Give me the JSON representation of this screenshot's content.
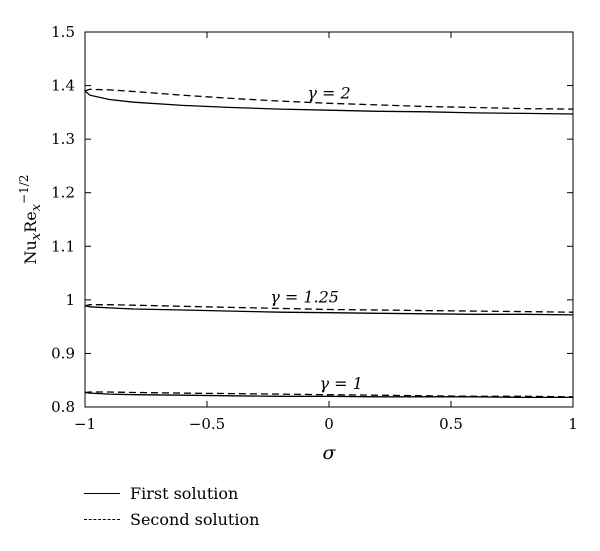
{
  "chart_data": {
    "type": "line",
    "xlabel": "σ",
    "ylabel": "Nu",
    "ylabel_sub1": "x",
    "ylabel_mid": "Re",
    "ylabel_sub2": "x",
    "ylabel_sup": "−1/2",
    "xlim": [
      -1,
      1
    ],
    "ylim": [
      0.8,
      1.5
    ],
    "xticks": [
      -1,
      -0.5,
      0,
      0.5,
      1
    ],
    "xtick_labels": [
      "−1",
      "−0.5",
      "0",
      "0.5",
      "1"
    ],
    "yticks": [
      0.8,
      0.9,
      1.0,
      1.1,
      1.2,
      1.3,
      1.4,
      1.5
    ],
    "ytick_labels": [
      "0.8",
      "0.9",
      "1",
      "1.1",
      "1.2",
      "1.3",
      "1.4",
      "1.5"
    ],
    "grid": false,
    "legend_position": "bottom-left, below plot",
    "legend": [
      {
        "label": "First solution",
        "style": "solid"
      },
      {
        "label": "Second solution",
        "style": "dashed"
      }
    ],
    "annotations": [
      {
        "text": "γ = 2",
        "x": 0.0,
        "y": 1.376
      },
      {
        "text": "γ = 1.25",
        "x": -0.1,
        "y": 0.995
      },
      {
        "text": "γ = 1",
        "x": 0.05,
        "y": 0.834
      }
    ],
    "series": [
      {
        "group": "γ = 2",
        "style": "solid",
        "x": [
          -1,
          -0.98,
          -0.9,
          -0.8,
          -0.6,
          -0.4,
          -0.2,
          0,
          0.2,
          0.4,
          0.6,
          0.8,
          1.0
        ],
        "values": [
          1.39,
          1.382,
          1.374,
          1.369,
          1.363,
          1.359,
          1.356,
          1.354,
          1.352,
          1.351,
          1.349,
          1.348,
          1.347
        ]
      },
      {
        "group": "γ = 2",
        "style": "dashed",
        "x": [
          -1,
          -0.98,
          -0.9,
          -0.8,
          -0.6,
          -0.4,
          -0.2,
          0,
          0.2,
          0.4,
          0.6,
          0.8,
          1.0
        ],
        "values": [
          1.39,
          1.393,
          1.392,
          1.389,
          1.382,
          1.376,
          1.371,
          1.367,
          1.364,
          1.361,
          1.359,
          1.357,
          1.356
        ]
      },
      {
        "group": "γ = 1.25",
        "style": "solid",
        "x": [
          -1,
          -0.98,
          -0.9,
          -0.8,
          -0.6,
          -0.4,
          -0.2,
          0,
          0.2,
          0.4,
          0.6,
          0.8,
          1.0
        ],
        "values": [
          0.989,
          0.987,
          0.985,
          0.983,
          0.981,
          0.979,
          0.977,
          0.976,
          0.975,
          0.974,
          0.973,
          0.973,
          0.972
        ]
      },
      {
        "group": "γ = 1.25",
        "style": "dashed",
        "x": [
          -1,
          -0.98,
          -0.9,
          -0.8,
          -0.6,
          -0.4,
          -0.2,
          0,
          0.2,
          0.4,
          0.6,
          0.8,
          1.0
        ],
        "values": [
          0.989,
          0.991,
          0.991,
          0.99,
          0.988,
          0.986,
          0.984,
          0.982,
          0.981,
          0.98,
          0.979,
          0.978,
          0.977
        ]
      },
      {
        "group": "γ = 1",
        "style": "solid",
        "x": [
          -1,
          -0.98,
          -0.9,
          -0.8,
          -0.6,
          -0.4,
          -0.2,
          0,
          0.2,
          0.4,
          0.6,
          0.8,
          1.0
        ],
        "values": [
          0.827,
          0.826,
          0.824,
          0.823,
          0.822,
          0.821,
          0.82,
          0.82,
          0.819,
          0.819,
          0.819,
          0.818,
          0.818
        ]
      },
      {
        "group": "γ = 1",
        "style": "dashed",
        "x": [
          -1,
          -0.98,
          -0.9,
          -0.8,
          -0.6,
          -0.4,
          -0.2,
          0,
          0.2,
          0.4,
          0.6,
          0.8,
          1.0
        ],
        "values": [
          0.827,
          0.828,
          0.828,
          0.827,
          0.826,
          0.825,
          0.824,
          0.823,
          0.822,
          0.821,
          0.82,
          0.82,
          0.819
        ]
      }
    ]
  }
}
